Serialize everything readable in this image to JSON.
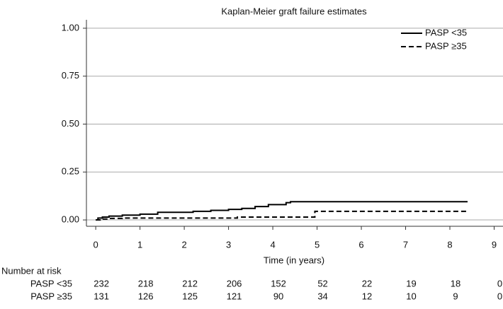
{
  "chart_data": {
    "type": "line",
    "step": true,
    "title": "Kaplan-Meier graft failure estimates",
    "x_label": "Time (in years)",
    "xlim": [
      -0.21,
      9.2
    ],
    "ylim": [
      -0.033,
      1.044
    ],
    "xticks": [
      0,
      1,
      2,
      3,
      4,
      5,
      6,
      7,
      8,
      9
    ],
    "yticks": [
      {
        "value": 0,
        "label": "0.00"
      },
      {
        "value": 0.25,
        "label": "0.25"
      },
      {
        "value": 0.5,
        "label": "0.50"
      },
      {
        "value": 0.75,
        "label": "0.75"
      },
      {
        "value": 1,
        "label": "1.00"
      }
    ],
    "grid": true,
    "legend": "top-right",
    "series": [
      {
        "name": "PASP <35",
        "color": "#000000",
        "dash": "solid",
        "x": [
          0,
          0.05,
          0.15,
          0.3,
          0.6,
          1.0,
          1.4,
          2.2,
          2.6,
          3.0,
          3.3,
          3.6,
          3.9,
          4.3,
          4.4,
          8.4
        ],
        "values": [
          0,
          0.01,
          0.015,
          0.02,
          0.025,
          0.03,
          0.04,
          0.045,
          0.05,
          0.055,
          0.06,
          0.07,
          0.08,
          0.09,
          0.095,
          0.095
        ]
      },
      {
        "name": "PASP ≥35",
        "color": "#000000",
        "dash": "dashed",
        "x": [
          0,
          0.1,
          0.3,
          0.6,
          3.2,
          4.95,
          8.4
        ],
        "values": [
          0,
          0.005,
          0.008,
          0.01,
          0.015,
          0.045,
          0.045
        ]
      }
    ],
    "risk_table": {
      "title": "Number at risk",
      "rows": [
        {
          "name": "PASP <35",
          "values": [
            232,
            218,
            212,
            206,
            152,
            52,
            22,
            19,
            18,
            0
          ]
        },
        {
          "name": "PASP ≥35",
          "values": [
            131,
            126,
            125,
            121,
            90,
            34,
            12,
            10,
            9,
            0
          ]
        }
      ]
    }
  }
}
